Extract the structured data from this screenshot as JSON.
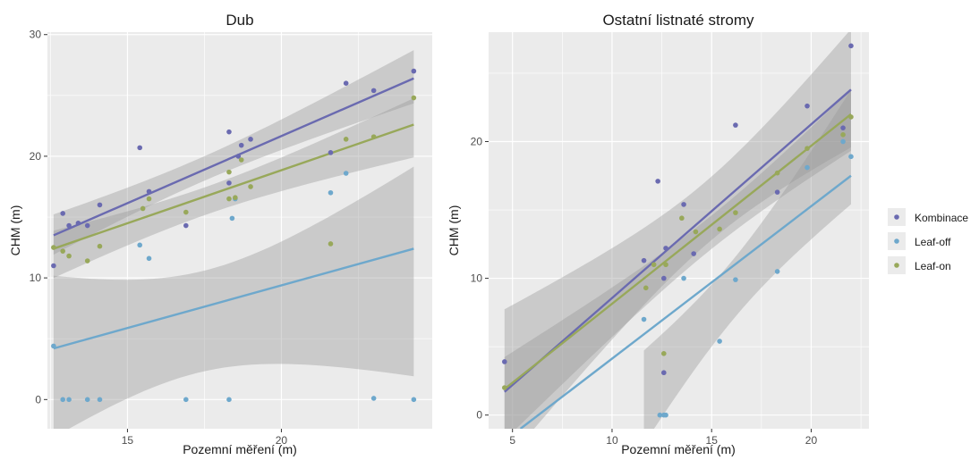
{
  "chart_data": [
    {
      "type": "scatter",
      "title": "Dub",
      "xlabel": "Pozemní měření (m)",
      "ylabel": "CHM (m)",
      "xlim": [
        12.4,
        24.9
      ],
      "ylim": [
        -2.4,
        30.2
      ],
      "xticks": [
        15,
        20
      ],
      "yticks": [
        0,
        10,
        20,
        30
      ],
      "grid": true,
      "series": [
        {
          "name": "Kombinace",
          "points": [
            [
              12.6,
              11.0
            ],
            [
              12.9,
              15.3
            ],
            [
              13.1,
              14.3
            ],
            [
              13.4,
              14.5
            ],
            [
              13.7,
              14.3
            ],
            [
              14.1,
              16.0
            ],
            [
              15.4,
              20.7
            ],
            [
              15.7,
              17.1
            ],
            [
              16.9,
              14.3
            ],
            [
              18.3,
              22.0
            ],
            [
              18.3,
              17.8
            ],
            [
              18.6,
              20.0
            ],
            [
              18.7,
              20.9
            ],
            [
              19.0,
              21.4
            ],
            [
              21.6,
              20.3
            ],
            [
              22.1,
              26.0
            ],
            [
              23.0,
              25.4
            ],
            [
              24.3,
              27.0
            ]
          ],
          "fit": [
            [
              12.6,
              13.5
            ],
            [
              24.3,
              26.4
            ]
          ]
        },
        {
          "name": "Leaf-off",
          "points": [
            [
              12.6,
              4.4
            ],
            [
              12.9,
              0.0
            ],
            [
              13.1,
              0.0
            ],
            [
              13.7,
              0.0
            ],
            [
              14.1,
              0.0
            ],
            [
              15.4,
              12.7
            ],
            [
              15.7,
              11.6
            ],
            [
              16.9,
              0.0
            ],
            [
              18.3,
              0.0
            ],
            [
              18.4,
              14.9
            ],
            [
              18.5,
              16.5
            ],
            [
              21.6,
              17.0
            ],
            [
              22.1,
              18.6
            ],
            [
              23.0,
              0.1
            ],
            [
              24.3,
              0.0
            ]
          ],
          "fit": [
            [
              12.6,
              4.2
            ],
            [
              24.3,
              12.4
            ]
          ]
        },
        {
          "name": "Leaf-on",
          "points": [
            [
              12.6,
              12.5
            ],
            [
              12.9,
              12.2
            ],
            [
              13.1,
              11.8
            ],
            [
              13.7,
              11.4
            ],
            [
              14.1,
              12.6
            ],
            [
              15.5,
              15.7
            ],
            [
              15.7,
              16.5
            ],
            [
              16.9,
              15.4
            ],
            [
              18.3,
              16.5
            ],
            [
              18.3,
              18.7
            ],
            [
              18.5,
              16.6
            ],
            [
              18.7,
              19.7
            ],
            [
              19.0,
              17.5
            ],
            [
              21.6,
              12.8
            ],
            [
              22.1,
              21.4
            ],
            [
              23.0,
              21.6
            ],
            [
              24.3,
              24.8
            ]
          ],
          "fit": [
            [
              12.6,
              12.4
            ],
            [
              24.3,
              22.6
            ]
          ]
        }
      ]
    },
    {
      "type": "scatter",
      "title": "Ostatní listnaté stromy",
      "xlabel": "Pozemní měření (m)",
      "ylabel": "CHM (m)",
      "xlim": [
        3.8,
        22.9
      ],
      "ylim": [
        -1.0,
        28.0
      ],
      "xticks": [
        5,
        10,
        15,
        20
      ],
      "yticks": [
        0,
        10,
        20
      ],
      "grid": true,
      "series": [
        {
          "name": "Kombinace",
          "points": [
            [
              4.6,
              3.9
            ],
            [
              11.6,
              11.3
            ],
            [
              12.3,
              17.1
            ],
            [
              12.6,
              3.1
            ],
            [
              12.6,
              10.0
            ],
            [
              12.7,
              12.2
            ],
            [
              13.6,
              15.4
            ],
            [
              14.1,
              11.8
            ],
            [
              16.2,
              21.2
            ],
            [
              18.3,
              16.3
            ],
            [
              19.8,
              22.6
            ],
            [
              21.6,
              21.0
            ],
            [
              22.0,
              27.0
            ]
          ],
          "fit": [
            [
              4.6,
              1.7
            ],
            [
              22.0,
              23.8
            ]
          ]
        },
        {
          "name": "Leaf-off",
          "points": [
            [
              11.6,
              7.0
            ],
            [
              12.4,
              0.0
            ],
            [
              12.6,
              0.0
            ],
            [
              12.7,
              0.0
            ],
            [
              13.6,
              10.0
            ],
            [
              15.4,
              5.4
            ],
            [
              16.2,
              9.9
            ],
            [
              18.3,
              10.5
            ],
            [
              19.8,
              18.1
            ],
            [
              21.6,
              20.0
            ],
            [
              22.0,
              18.9
            ]
          ],
          "fit": [
            [
              5.4,
              -1.0
            ],
            [
              22.0,
              17.5
            ]
          ]
        },
        {
          "name": "Leaf-on",
          "points": [
            [
              4.6,
              2.0
            ],
            [
              11.7,
              9.3
            ],
            [
              12.1,
              11.0
            ],
            [
              12.6,
              4.5
            ],
            [
              12.7,
              11.0
            ],
            [
              13.5,
              14.4
            ],
            [
              14.2,
              13.4
            ],
            [
              15.4,
              13.6
            ],
            [
              16.2,
              14.8
            ],
            [
              18.3,
              17.7
            ],
            [
              19.8,
              19.5
            ],
            [
              21.6,
              20.5
            ],
            [
              22.0,
              21.8
            ]
          ],
          "fit": [
            [
              4.6,
              1.9
            ],
            [
              22.0,
              22.0
            ]
          ]
        }
      ]
    }
  ],
  "legend": {
    "placement": "right",
    "items": [
      {
        "label": "Kombinace",
        "color": "#6a6ab0"
      },
      {
        "label": "Leaf-off",
        "color": "#6ea8cc"
      },
      {
        "label": "Leaf-on",
        "color": "#98a85a"
      }
    ]
  },
  "colors": {
    "panel_background": "#ebebeb",
    "grid": "#ffffff",
    "confidence_band": "#999999"
  }
}
